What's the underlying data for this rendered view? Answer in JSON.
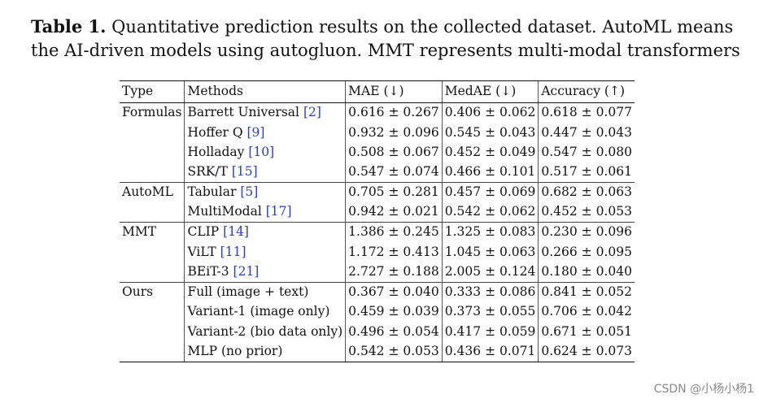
{
  "caption": {
    "label": "Table 1.",
    "text": "Quantitative prediction results on the collected dataset. AutoML means the AI-driven models using autogluon. MMT represents multi-modal transformers"
  },
  "table": {
    "headers": [
      "Type",
      "Methods",
      "MAE (↓)",
      "MedAE (↓)",
      "Accuracy (↑)"
    ],
    "groups": [
      {
        "type": "Formulas",
        "rows": [
          {
            "method": "Barrett Universal",
            "ref": "[2]",
            "mae": "0.616 ± 0.267",
            "medae": "0.406 ± 0.062",
            "acc": "0.618 ± 0.077"
          },
          {
            "method": "Hoffer Q",
            "ref": "[9]",
            "mae": "0.932 ± 0.096",
            "medae": "0.545 ± 0.043",
            "acc": "0.447 ± 0.043"
          },
          {
            "method": "Holladay",
            "ref": "[10]",
            "mae": "0.508 ± 0.067",
            "medae": "0.452 ± 0.049",
            "acc": "0.547 ± 0.080"
          },
          {
            "method": "SRK/T",
            "ref": "[15]",
            "mae": "0.547 ± 0.074",
            "medae": "0.466 ± 0.101",
            "acc": "0.517 ± 0.061"
          }
        ]
      },
      {
        "type": "AutoML",
        "rows": [
          {
            "method": "Tabular",
            "ref": "[5]",
            "mae": "0.705 ± 0.281",
            "medae": "0.457 ± 0.069",
            "acc": "0.682 ± 0.063"
          },
          {
            "method": "MultiModal",
            "ref": "[17]",
            "mae": "0.942 ± 0.021",
            "medae": "0.542 ± 0.062",
            "acc": "0.452 ± 0.053"
          }
        ]
      },
      {
        "type": "MMT",
        "rows": [
          {
            "method": "CLIP",
            "ref": "[14]",
            "mae": "1.386 ± 0.245",
            "medae": "1.325 ± 0.083",
            "acc": "0.230 ± 0.096"
          },
          {
            "method": "ViLT",
            "ref": "[11]",
            "mae": "1.172 ± 0.413",
            "medae": "1.045 ± 0.063",
            "acc": "0.266 ± 0.095"
          },
          {
            "method": "BEiT-3",
            "ref": "[21]",
            "mae": "2.727 ± 0.188",
            "medae": "2.005 ± 0.124",
            "acc": "0.180 ± 0.040"
          }
        ]
      },
      {
        "type": "Ours",
        "rows": [
          {
            "method": "Full (image + text)",
            "ref": "",
            "mae": "0.367 ± 0.040",
            "medae": "0.333 ± 0.086",
            "acc": "0.841 ± 0.052"
          },
          {
            "method": "Variant-1 (image only)",
            "ref": "",
            "mae": "0.459 ± 0.039",
            "medae": "0.373 ± 0.055",
            "acc": "0.706 ± 0.042"
          },
          {
            "method": "Variant-2 (bio data only)",
            "ref": "",
            "mae": "0.496 ± 0.054",
            "medae": "0.417 ± 0.059",
            "acc": "0.671 ± 0.051"
          },
          {
            "method": "MLP (no prior)",
            "ref": "",
            "mae": "0.542 ± 0.053",
            "medae": "0.436 ± 0.071",
            "acc": "0.624 ± 0.073"
          }
        ]
      }
    ]
  },
  "watermark": "CSDN @小杨小杨1",
  "colors": {
    "citation": "#2a3fbf",
    "text": "#111111",
    "watermark": "#8a8a8a"
  }
}
